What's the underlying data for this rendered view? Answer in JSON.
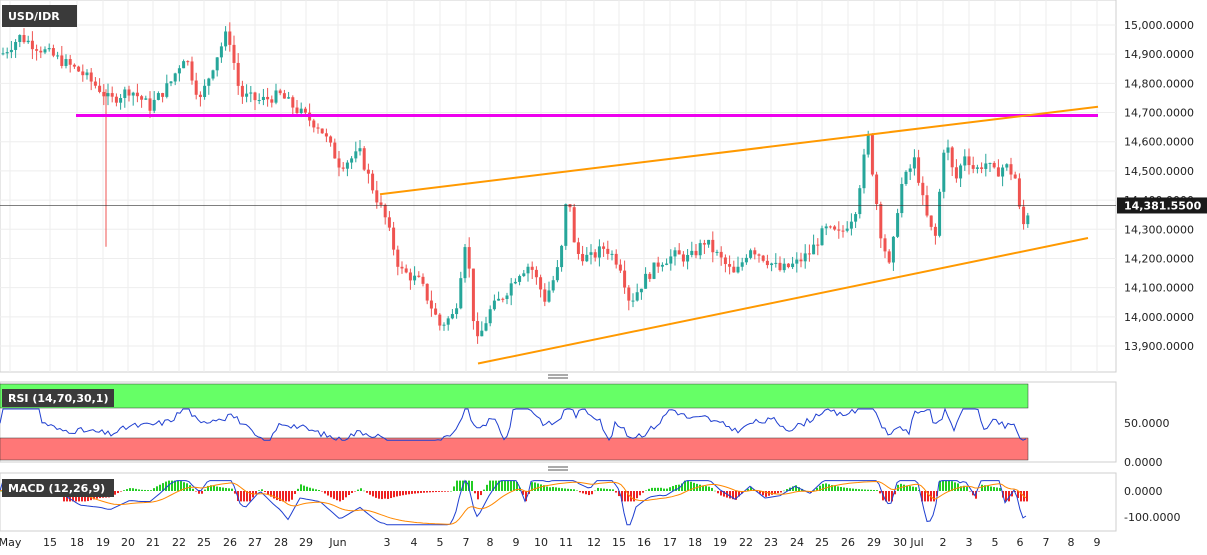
{
  "chart_data": {
    "type": "candlestick",
    "symbol": "USD/IDR",
    "price_tag": "14,381.5500",
    "price_axis": {
      "ticks": [
        "15,000.0000",
        "14,900.0000",
        "14,800.0000",
        "14,700.0000",
        "14,600.0000",
        "14,500.0000",
        "14,400.0000",
        "14,300.0000",
        "14,200.0000",
        "14,100.0000",
        "14,000.0000",
        "13,900.0000"
      ],
      "ylim": [
        13820,
        15080
      ]
    },
    "date_axis": {
      "ticks": [
        "May",
        "15",
        "18",
        "19",
        "20",
        "21",
        "22",
        "25",
        "26",
        "27",
        "28",
        "29",
        "Jun",
        "3",
        "4",
        "5",
        "7",
        "8",
        "9",
        "10",
        "11",
        "12",
        "15",
        "16",
        "17",
        "18",
        "19",
        "22",
        "23",
        "24",
        "25",
        "26",
        "29",
        "30",
        "Jul",
        "2",
        "3",
        "5",
        "6",
        "7",
        "8",
        "9"
      ]
    },
    "horizontal_level": 14690,
    "channel": {
      "upper": [
        {
          "date": "Jun 3",
          "value": 14420
        },
        {
          "date": "Jul 8",
          "value": 14720
        }
      ],
      "lower": [
        {
          "date": "Jun 7",
          "value": 13840
        },
        {
          "date": "Jul 7",
          "value": 14270
        }
      ]
    },
    "colors": {
      "up": "#26a69a",
      "down": "#ef5350",
      "level": "#ee00ee",
      "channel": "#ff9900",
      "rsi_upper": "#66ff66",
      "rsi_lower": "#ff7777",
      "macd": "#1f3fd0",
      "signal": "#ff8800",
      "hist_up": "#22cc22",
      "hist_down": "#ee2222"
    },
    "rsi": {
      "label": "RSI (14,70,30,1)",
      "ticks": [
        "50.0000",
        "0.0000"
      ]
    },
    "macd": {
      "label": "MACD (12,26,9)",
      "ticks": [
        "0.0000",
        "-100.0000"
      ]
    }
  }
}
